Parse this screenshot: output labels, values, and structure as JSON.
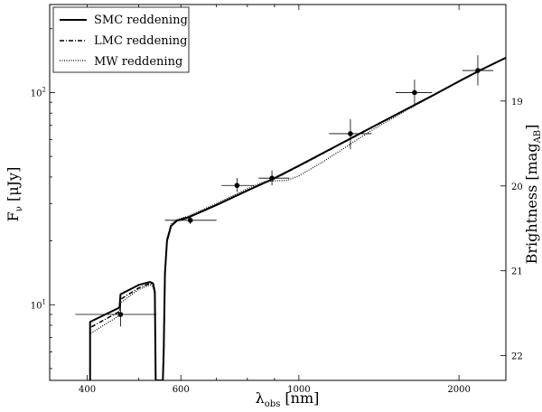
{
  "chart_data": {
    "type": "line",
    "xscale": "log",
    "yscale": "log",
    "xlabel": "λobs [nm]",
    "xlabel_main": "λ",
    "xlabel_sub": "obs",
    "xlabel_unit": " [nm]",
    "ylabel": "Fν [μJy]",
    "ylabel_main": "F",
    "ylabel_sub": "ν",
    "ylabel_unit": " [μJy]",
    "ylabel_right": "Brightness [magAB]",
    "ylabel_right_main": "Brightness [mag",
    "ylabel_right_sub": "AB",
    "ylabel_right_end": "]",
    "xlim": [
      340,
      2450
    ],
    "ylim": [
      4.4,
      260
    ],
    "x_ticks": [
      400,
      600,
      1000,
      2000
    ],
    "x_tick_labels": [
      "400",
      "600",
      "1000",
      "2000"
    ],
    "y_ticks": [
      10,
      100
    ],
    "y_tick_labels": [
      "10¹",
      "10²"
    ],
    "y_tick_label_base": "10",
    "y_tick_label_exp": [
      "1",
      "2"
    ],
    "right_ticks_mag": [
      19,
      20,
      21,
      22
    ],
    "right_tick_labels": [
      "19",
      "20",
      "21",
      "22"
    ],
    "grid": false,
    "legend_position": "top-left",
    "series": [
      {
        "name": "SMC reddening",
        "style": "solid",
        "color": "#000000",
        "points": [
          [
            405,
            4.4
          ],
          [
            405,
            8.3
          ],
          [
            460,
            9.7
          ],
          [
            462,
            11.2
          ],
          [
            500,
            12.4
          ],
          [
            525,
            12.8
          ],
          [
            532,
            12.6
          ],
          [
            536,
            11.5
          ],
          [
            538,
            4.4
          ],
          [
            555,
            4.4
          ],
          [
            557,
            6.0
          ],
          [
            560,
            14.0
          ],
          [
            565,
            20.0
          ],
          [
            575,
            23.5
          ],
          [
            590,
            24.9
          ],
          [
            620,
            25.8
          ],
          [
            700,
            29.5
          ],
          [
            800,
            34.5
          ],
          [
            900,
            39.5
          ],
          [
            1000,
            45.2
          ],
          [
            1200,
            57.5
          ],
          [
            1400,
            70.5
          ],
          [
            1600,
            84.0
          ],
          [
            1800,
            98.0
          ],
          [
            2000,
            113.0
          ],
          [
            2200,
            128.0
          ],
          [
            2450,
            146.0
          ]
        ]
      },
      {
        "name": "LMC reddening",
        "style": "dashdot",
        "color": "#000000",
        "points": [
          [
            405,
            4.4
          ],
          [
            405,
            7.8
          ],
          [
            460,
            9.3
          ],
          [
            462,
            10.6
          ],
          [
            500,
            12.0
          ],
          [
            525,
            12.6
          ],
          [
            532,
            12.4
          ],
          [
            536,
            11.3
          ],
          [
            538,
            4.4
          ],
          [
            555,
            4.4
          ],
          [
            557,
            6.0
          ],
          [
            560,
            14.2
          ],
          [
            565,
            20.2
          ],
          [
            575,
            23.7
          ],
          [
            590,
            25.0
          ],
          [
            620,
            25.9
          ],
          [
            700,
            29.6
          ],
          [
            800,
            34.6
          ],
          [
            900,
            39.3
          ],
          [
            1000,
            45.0
          ],
          [
            1200,
            57.3
          ],
          [
            1400,
            70.3
          ],
          [
            1600,
            83.8
          ],
          [
            1800,
            97.8
          ],
          [
            2000,
            112.8
          ],
          [
            2200,
            127.8
          ],
          [
            2450,
            145.8
          ]
        ]
      },
      {
        "name": "MW reddening",
        "style": "dotted",
        "color": "#000000",
        "points": [
          [
            405,
            4.4
          ],
          [
            405,
            7.3
          ],
          [
            460,
            8.9
          ],
          [
            462,
            10.2
          ],
          [
            500,
            11.8
          ],
          [
            525,
            12.4
          ],
          [
            532,
            12.2
          ],
          [
            536,
            11.1
          ],
          [
            538,
            4.4
          ],
          [
            555,
            4.4
          ],
          [
            557,
            6.0
          ],
          [
            560,
            14.5
          ],
          [
            565,
            20.5
          ],
          [
            575,
            24.0
          ],
          [
            590,
            25.2
          ],
          [
            620,
            26.2
          ],
          [
            700,
            30.0
          ],
          [
            800,
            35.2
          ],
          [
            860,
            38.0
          ],
          [
            900,
            38.3
          ],
          [
            950,
            38.6
          ],
          [
            1000,
            40.5
          ],
          [
            1100,
            46.5
          ],
          [
            1200,
            53.5
          ],
          [
            1300,
            61.0
          ],
          [
            1400,
            68.5
          ],
          [
            1600,
            83.0
          ],
          [
            1800,
            97.5
          ],
          [
            2000,
            112.5
          ],
          [
            2200,
            127.5
          ],
          [
            2450,
            145.5
          ]
        ]
      }
    ],
    "data_points": [
      {
        "x": 462,
        "y": 9.0,
        "xerr": [
          380,
          540
        ],
        "yerr": [
          7.9,
          10.2
        ]
      },
      {
        "x": 625,
        "y": 25.0,
        "xerr": [
          560,
          700
        ],
        "yerr": [
          24.0,
          26.0
        ]
      },
      {
        "x": 765,
        "y": 36.5,
        "xerr": [
          715,
          825
        ],
        "yerr": [
          34.0,
          39.5
        ]
      },
      {
        "x": 890,
        "y": 39.5,
        "xerr": [
          840,
          960
        ],
        "yerr": [
          36.5,
          43.0
        ]
      },
      {
        "x": 1250,
        "y": 64.0,
        "xerr": [
          1140,
          1370
        ],
        "yerr": [
          54.0,
          75.0
        ]
      },
      {
        "x": 1650,
        "y": 100.0,
        "xerr": [
          1520,
          1780
        ],
        "yerr": [
          88.0,
          115.0
        ]
      },
      {
        "x": 2170,
        "y": 127.0,
        "xerr": [
          2030,
          2320
        ],
        "yerr": [
          108.0,
          150.0
        ]
      }
    ]
  }
}
